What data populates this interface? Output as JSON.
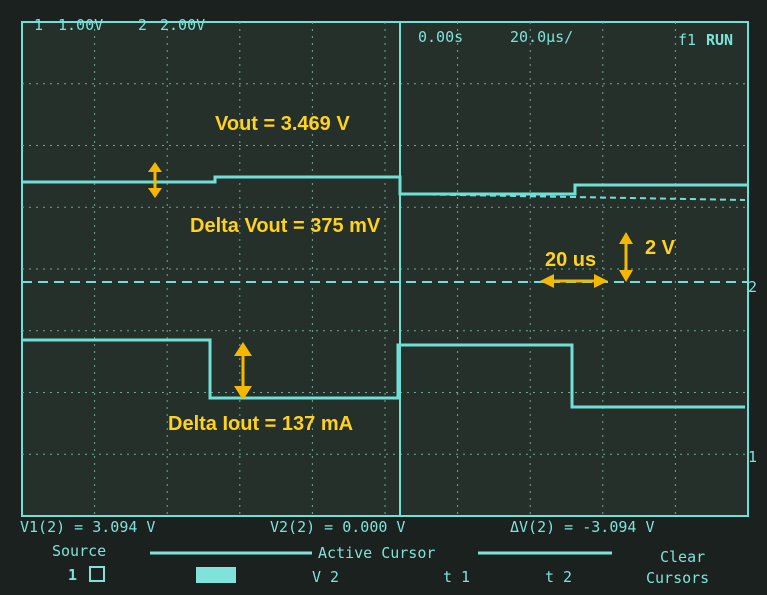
{
  "header": {
    "ch1_label": "1",
    "ch1_scale": "1.00V",
    "ch2_label": "2",
    "ch2_scale": "2.00V",
    "delay": "0.00s",
    "timebase": "20.0µs/",
    "trigger": "f1",
    "status": "RUN"
  },
  "annotations": {
    "vout": "Vout = 3.469 V",
    "delta_vout": "Delta Vout = 375 mV",
    "time_div": "20 us",
    "volt_div": "2 V",
    "delta_iout": "Delta Iout = 137 mA"
  },
  "markers": {
    "ch2": "2",
    "ch1": "1"
  },
  "readouts": {
    "v1": "V1(2) = 3.094 V",
    "v2": "V2(2) = 0.000 V",
    "dv": "ΔV(2) = -3.094 V"
  },
  "softkeys": {
    "source": "Source",
    "source_value": "1",
    "active_cursor": "Active Cursor",
    "v2": "V 2",
    "t1": "t 1",
    "t2": "t 2",
    "clear": "Clear",
    "cursors": "Cursors"
  }
}
